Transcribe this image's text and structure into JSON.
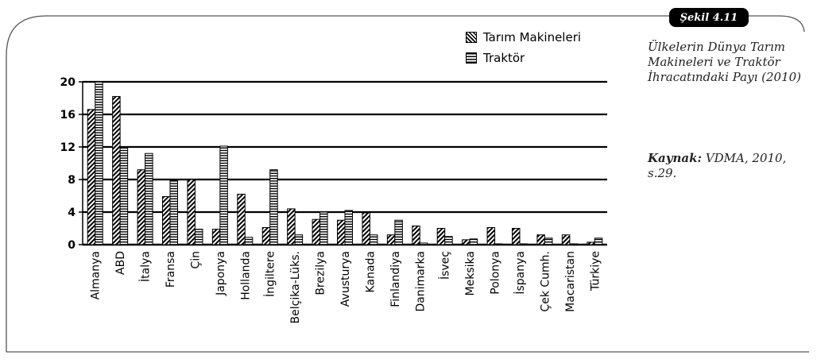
{
  "figure": {
    "badge": "Şekil 4.11",
    "caption": "Ülkelerin Dünya Tarım Makineleri ve Traktör İhracatındaki Payı (2010)",
    "source_label": "Kaynak:",
    "source_text": "VDMA, 2010, s.29."
  },
  "chart_data": {
    "type": "bar",
    "title": "Ülkelerin Dünya Tarım Makineleri ve Traktör İhracatındaki Payı (2010)",
    "xlabel": "",
    "ylabel": "",
    "ylim": [
      0,
      20
    ],
    "yticks": [
      "0",
      "4",
      "8",
      "12",
      "16",
      "20"
    ],
    "grid": true,
    "legend_position": "top-right",
    "categories": [
      "Almanya",
      "ABD",
      "İtalya",
      "Fransa",
      "Çin",
      "Japonya",
      "Hollanda",
      "İngiltere",
      "Belçika-Lüks.",
      "Brezilya",
      "Avusturya",
      "Kanada",
      "Finlandiya",
      "Danimarka",
      "İsveç",
      "Meksika",
      "Polonya",
      "İspanya",
      "Çek Cumh.",
      "Macaristan",
      "Türkiye"
    ],
    "series": [
      {
        "name": "Tarım Makineleri",
        "values": [
          16.6,
          18.2,
          9.2,
          5.9,
          8.0,
          1.9,
          6.2,
          2.1,
          4.4,
          3.1,
          3.0,
          3.9,
          1.2,
          2.3,
          2.0,
          0.6,
          2.1,
          2.0,
          1.2,
          1.2,
          0.3
        ]
      },
      {
        "name": "Traktör",
        "values": [
          20.0,
          12.0,
          11.2,
          7.9,
          1.9,
          12.1,
          0.9,
          9.2,
          1.2,
          4.0,
          4.2,
          1.2,
          3.0,
          0.2,
          1.0,
          0.7,
          0.1,
          0.1,
          0.8,
          0.1,
          0.8
        ]
      }
    ]
  }
}
